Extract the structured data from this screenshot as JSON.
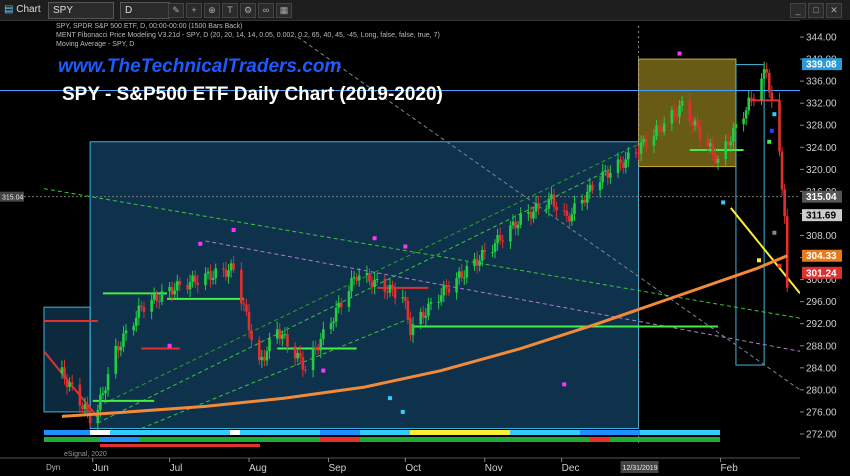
{
  "toolbar": {
    "app_label": "Chart",
    "symbol": "SPY",
    "interval": "D"
  },
  "indicators": {
    "line1": "SPY, SPDR S&P 500 ETF, D, 00:00-00:00 (1500 Bars Back)",
    "line2": "MENT Fibonacci Price Modeling V3.21d - SPY, D (20, 20, 14, 14, 0.05, 0.002, 0.2, 65, 40, 45, -45, Long, false, false, true, 7)",
    "line3": "Moving Average - SPY, D"
  },
  "banner": {
    "url": "www.TheTechnicalTraders.com",
    "title": "SPY - S&P500 ETF Daily Chart (2019-2020)"
  },
  "footer": {
    "brand": "eSignal, 2020",
    "date_marker": "12/31/2019",
    "dyn": "Dyn"
  },
  "colors": {
    "background": "#000000",
    "up_candle": "#22cc44",
    "down_candle": "#e03030",
    "moving_average": "#f28a3a",
    "yellow_line": "#ffee33",
    "fib_box_blue": "#1a5a8a",
    "fib_box_gold": "#8a7a1c",
    "price_label": "#2b2b2b"
  },
  "chart_data": {
    "type": "line",
    "ylim": [
      270.0,
      346.0
    ],
    "y_ticks": [
      "272.00",
      "276.00",
      "280.00",
      "284.00",
      "288.00",
      "292.00",
      "296.00",
      "300.00",
      "304.00",
      "308.00",
      "312.00",
      "316.00",
      "320.00",
      "324.00",
      "328.00",
      "332.00",
      "336.00",
      "340.00",
      "344.00"
    ],
    "x_ticks": [
      "Jun",
      "Jul",
      "Aug",
      "Sep",
      "Oct",
      "Nov",
      "Dec",
      "Feb"
    ],
    "price_labels": [
      {
        "text": "339.08",
        "value": 339.08,
        "bg": "#2a9ad8",
        "fg": "#ffffff"
      },
      {
        "text": "315.04",
        "value": 315.04,
        "bg": "#555555",
        "fg": "#ffffff"
      },
      {
        "text": "311.69",
        "value": 311.69,
        "bg": "#cccccc",
        "fg": "#000000"
      },
      {
        "text": "304.33",
        "value": 304.33,
        "bg": "#e87a1e",
        "fg": "#ffffff"
      },
      {
        "text": "301.24",
        "value": 301.24,
        "bg": "#e03030",
        "fg": "#ffffff"
      }
    ],
    "spy_close": {
      "name": "SPY",
      "dates": [
        "2019-05-20",
        "2019-05-31",
        "2019-06-03",
        "2019-06-10",
        "2019-06-20",
        "2019-07-03",
        "2019-07-15",
        "2019-07-26",
        "2019-08-05",
        "2019-08-12",
        "2019-08-23",
        "2019-09-12",
        "2019-09-30",
        "2019-10-03",
        "2019-10-15",
        "2019-10-28",
        "2019-11-15",
        "2019-11-27",
        "2019-12-03",
        "2019-12-16",
        "2019-12-27",
        "2020-01-17",
        "2020-01-31",
        "2020-02-19",
        "2020-02-24",
        "2020-02-26",
        "2020-02-27"
      ],
      "values": [
        283.0,
        275.0,
        276.5,
        287.0,
        295.0,
        298.5,
        300.5,
        302.0,
        284.5,
        291.0,
        284.0,
        301.0,
        297.0,
        291.0,
        297.5,
        303.0,
        311.0,
        314.5,
        311.0,
        318.5,
        322.0,
        331.5,
        321.5,
        338.0,
        322.5,
        312.0,
        297.5
      ]
    },
    "moving_average": {
      "name": "Moving Average - SPY, D",
      "dates": [
        "2019-05-20",
        "2019-06-15",
        "2019-07-15",
        "2019-08-15",
        "2019-09-15",
        "2019-10-15",
        "2019-11-15",
        "2019-12-15",
        "2020-01-15",
        "2020-02-15",
        "2020-02-27"
      ],
      "values": [
        275.2,
        276.0,
        277.0,
        278.5,
        280.5,
        283.5,
        287.5,
        292.0,
        297.0,
        302.0,
        304.33
      ]
    }
  }
}
